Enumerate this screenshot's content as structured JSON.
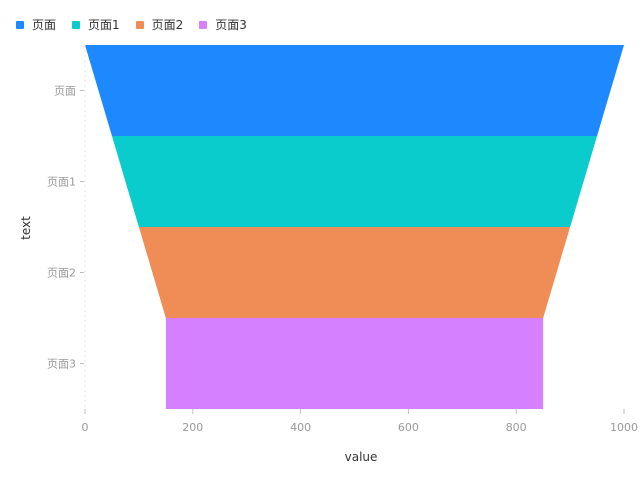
{
  "chart_data": {
    "type": "funnel",
    "categories": [
      "页面",
      "页面1",
      "页面2",
      "页面3"
    ],
    "values": [
      1000,
      900,
      800,
      700
    ],
    "colors": [
      "#1e88ff",
      "#0acccc",
      "#f08c55",
      "#d580ff"
    ],
    "xlabel": "value",
    "ylabel": "text",
    "xlim": [
      0,
      1000
    ],
    "xticks": [
      0,
      200,
      400,
      600,
      800,
      1000
    ],
    "legend_position": "top-left",
    "grid": false
  }
}
